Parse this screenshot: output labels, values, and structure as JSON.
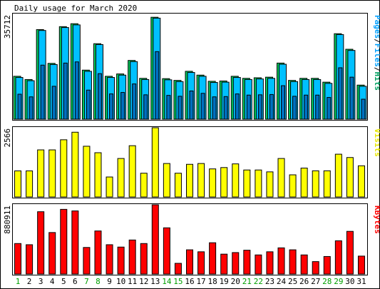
{
  "chart_data": {
    "type": "bar",
    "title": "Daily usage for March 2020",
    "days": [
      "1",
      "2",
      "3",
      "4",
      "5",
      "6",
      "7",
      "8",
      "9",
      "10",
      "11",
      "12",
      "13",
      "14",
      "15",
      "16",
      "17",
      "18",
      "19",
      "20",
      "21",
      "22",
      "23",
      "24",
      "25",
      "26",
      "27",
      "28",
      "29",
      "30",
      "31"
    ],
    "weekend_days": [
      "1",
      "7",
      "8",
      "14",
      "15",
      "21",
      "22",
      "28",
      "29"
    ],
    "panels": [
      {
        "id": "hits",
        "max_label": "35712",
        "ymax": 35712,
        "legend": [
          "Pages",
          "/",
          "Files",
          "/",
          "Hits"
        ],
        "legend_colors": [
          "#00a0ff",
          "#000000",
          "#00a0ff",
          "#000000",
          "#00a060"
        ],
        "series": [
          {
            "name": "Hits",
            "color": "#00d060",
            "values": [
              14600,
              13500,
              30500,
              19000,
              31500,
              32500,
              16700,
              25700,
              14600,
              15400,
              20000,
              13900,
              34700,
              13800,
              13200,
              16300,
              15000,
              12900,
              13000,
              14600,
              13900,
              14100,
              14300,
              19100,
              13200,
              13900,
              13900,
              12600,
              29100,
              23800,
              11600
            ]
          },
          {
            "name": "Files",
            "color": "#00c0ff",
            "values": [
              14200,
              13100,
              30200,
              18600,
              31200,
              32100,
              16300,
              25400,
              14200,
              15000,
              19600,
              13500,
              34400,
              13400,
              12800,
              15900,
              14600,
              12500,
              12600,
              14200,
              13500,
              13700,
              13900,
              18700,
              12800,
              13500,
              13500,
              12200,
              28800,
              23400,
              11200
            ]
          },
          {
            "name": "Pages",
            "color": "#0070c0",
            "values": [
              8500,
              7600,
              18400,
              11200,
              19100,
              19500,
              9900,
              15500,
              8600,
              9100,
              12000,
              8300,
              23000,
              8100,
              7800,
              9600,
              8800,
              7600,
              7700,
              8600,
              8200,
              8300,
              8400,
              11400,
              7800,
              8200,
              8200,
              7400,
              17500,
              14300,
              6800
            ]
          }
        ]
      },
      {
        "id": "visits",
        "max_label": "2566",
        "ymax": 2566,
        "legend": [
          "Visits"
        ],
        "legend_colors": [
          "#e8e800"
        ],
        "series": [
          {
            "name": "Visits",
            "color": "#ffff00",
            "values": [
              967,
              967,
              1745,
              1745,
              2120,
              2400,
              1880,
              1640,
              740,
              1426,
              1900,
              880,
              2566,
              1240,
              880,
              1210,
              1240,
              1040,
              1090,
              1226,
              1000,
              1000,
              930,
              1426,
              820,
              1070,
              970,
              970,
              1585,
              1462,
              1155
            ]
          }
        ]
      },
      {
        "id": "kbytes",
        "max_label": "880911",
        "ymax": 880911,
        "legend": [
          "KBytes"
        ],
        "legend_colors": [
          "#ff0000"
        ],
        "series": [
          {
            "name": "KBytes",
            "color": "#ff0000",
            "values": [
              388000,
              373000,
              793000,
              528000,
              823000,
              803000,
              338000,
              548000,
              373000,
              343000,
              433000,
              388000,
              880911,
              588000,
              136000,
              308000,
              283000,
              398000,
              253000,
              273000,
              303000,
              243000,
              283000,
              333000,
              308000,
              243000,
              158000,
              223000,
              423000,
              543000,
              228000
            ]
          }
        ]
      }
    ]
  }
}
